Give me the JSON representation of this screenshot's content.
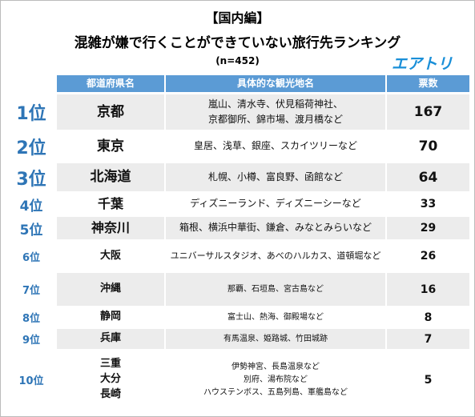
{
  "header": {
    "tag": "【国内編】",
    "title": "混雑が嫌で行くことができていない旅行先ランキング",
    "sample": "(n=452)",
    "logo": "エアトリ"
  },
  "table": {
    "columns": [
      "都道府県名",
      "具体的な観光地名",
      "票数"
    ],
    "rows": [
      {
        "rank": "1位",
        "prefectures": [
          "京都"
        ],
        "places": [
          "嵐山、清水寺、伏見稲荷神社、",
          "京都御所、錦市場、渡月橋など"
        ],
        "votes": 167
      },
      {
        "rank": "2位",
        "prefectures": [
          "東京"
        ],
        "places": [
          "皇居、浅草、銀座、スカイツリーなど"
        ],
        "votes": 70
      },
      {
        "rank": "3位",
        "prefectures": [
          "北海道"
        ],
        "places": [
          "札幌、小樽、富良野、函館など"
        ],
        "votes": 64
      },
      {
        "rank": "4位",
        "prefectures": [
          "千葉"
        ],
        "places": [
          "ディズニーランド、ディズニーシーなど"
        ],
        "votes": 33
      },
      {
        "rank": "5位",
        "prefectures": [
          "神奈川"
        ],
        "places": [
          "箱根、横浜中華街、鎌倉、みなとみらいなど"
        ],
        "votes": 29
      },
      {
        "rank": "6位",
        "prefectures": [
          "大阪"
        ],
        "places": [
          "ユニバーサルスタジオ、あべのハルカス、道頓堀など"
        ],
        "votes": 26
      },
      {
        "rank": "7位",
        "prefectures": [
          "沖縄"
        ],
        "places": [
          "那覇、石垣島、宮古島など"
        ],
        "votes": 16
      },
      {
        "rank": "8位",
        "prefectures": [
          "静岡"
        ],
        "places": [
          "富士山、熱海、御殿場など"
        ],
        "votes": 8
      },
      {
        "rank": "9位",
        "prefectures": [
          "兵庫"
        ],
        "places": [
          "有馬温泉、姫路城、竹田城跡"
        ],
        "votes": 7
      },
      {
        "rank": "10位",
        "prefectures": [
          "三重",
          "大分",
          "長崎"
        ],
        "places": [
          "伊勢神宮、長島温泉など",
          "別府、湯布院など",
          "ハウステンボス、五島列島、軍艦島など"
        ],
        "votes": 5
      }
    ]
  }
}
